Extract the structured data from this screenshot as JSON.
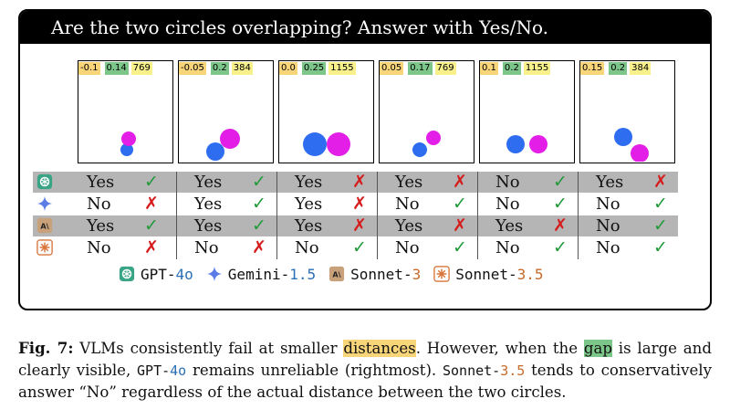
{
  "question": "Are the two circles overlapping? Answer with Yes/No.",
  "panels": [
    {
      "distance": "-0.1",
      "gap": "0.14",
      "resolution": "769"
    },
    {
      "distance": "-0.05",
      "gap": "0.2",
      "resolution": "384"
    },
    {
      "distance": "0.0",
      "gap": "0.25",
      "resolution": "1155"
    },
    {
      "distance": "0.05",
      "gap": "0.17",
      "resolution": "769"
    },
    {
      "distance": "0.1",
      "gap": "0.2",
      "resolution": "1155"
    },
    {
      "distance": "0.15",
      "gap": "0.2",
      "resolution": "384"
    }
  ],
  "colors": {
    "blue_circle": "#2f6df0",
    "magenta_circle": "#e31ee6",
    "distance_chip": "#f9d57a",
    "gap_chip": "#7cc68a",
    "resolution_chip": "#f7f08b",
    "correct": "#1f9a3a",
    "wrong": "#d51b1b",
    "shaded_row": "#b5b5b5"
  },
  "models": [
    {
      "icon": "gpt-icon",
      "answers": [
        {
          "text": "Yes",
          "mark": "✓"
        },
        {
          "text": "Yes",
          "mark": "✓"
        },
        {
          "text": "Yes",
          "mark": "✗"
        },
        {
          "text": "Yes",
          "mark": "✗"
        },
        {
          "text": "No",
          "mark": "✓"
        },
        {
          "text": "Yes",
          "mark": "✗"
        }
      ]
    },
    {
      "icon": "gemini-icon",
      "answers": [
        {
          "text": "No",
          "mark": "✗"
        },
        {
          "text": "Yes",
          "mark": "✓"
        },
        {
          "text": "Yes",
          "mark": "✗"
        },
        {
          "text": "No",
          "mark": "✓"
        },
        {
          "text": "No",
          "mark": "✓"
        },
        {
          "text": "No",
          "mark": "✓"
        }
      ]
    },
    {
      "icon": "sonnet-icon",
      "answers": [
        {
          "text": "Yes",
          "mark": "✓"
        },
        {
          "text": "Yes",
          "mark": "✓"
        },
        {
          "text": "Yes",
          "mark": "✗"
        },
        {
          "text": "Yes",
          "mark": "✗"
        },
        {
          "text": "Yes",
          "mark": "✗"
        },
        {
          "text": "No",
          "mark": "✓"
        }
      ]
    },
    {
      "icon": "sonnet-35-icon",
      "answers": [
        {
          "text": "No",
          "mark": "✗"
        },
        {
          "text": "No",
          "mark": "✗"
        },
        {
          "text": "No",
          "mark": "✓"
        },
        {
          "text": "No",
          "mark": "✓"
        },
        {
          "text": "No",
          "mark": "✓"
        },
        {
          "text": "No",
          "mark": "✓"
        }
      ]
    }
  ],
  "legend": [
    {
      "name": "GPT-",
      "version": "4o",
      "icon": "gpt-icon"
    },
    {
      "name": "Gemini-",
      "version": "1.5",
      "icon": "gemini-icon"
    },
    {
      "name": "Sonnet-",
      "version": "3",
      "icon": "sonnet-icon"
    },
    {
      "name": "Sonnet-",
      "version": "3.5",
      "icon": "sonnet-35-icon"
    }
  ],
  "caption": {
    "label": "Fig. 7:",
    "t1": " VLMs consistently fail at smaller ",
    "distances": "distances",
    "t2": ". However, when the ",
    "gap": "gap",
    "t3": " is large and clearly visible, ",
    "gpt_name": "GPT-",
    "gpt_ver": "4o",
    "t4": " remains unreliable (rightmost). ",
    "sonnet_name": "Sonnet-",
    "sonnet_ver": "3.5",
    "t5": " tends to conservatively answer “No” regardless of the actual distance between the two circles."
  }
}
